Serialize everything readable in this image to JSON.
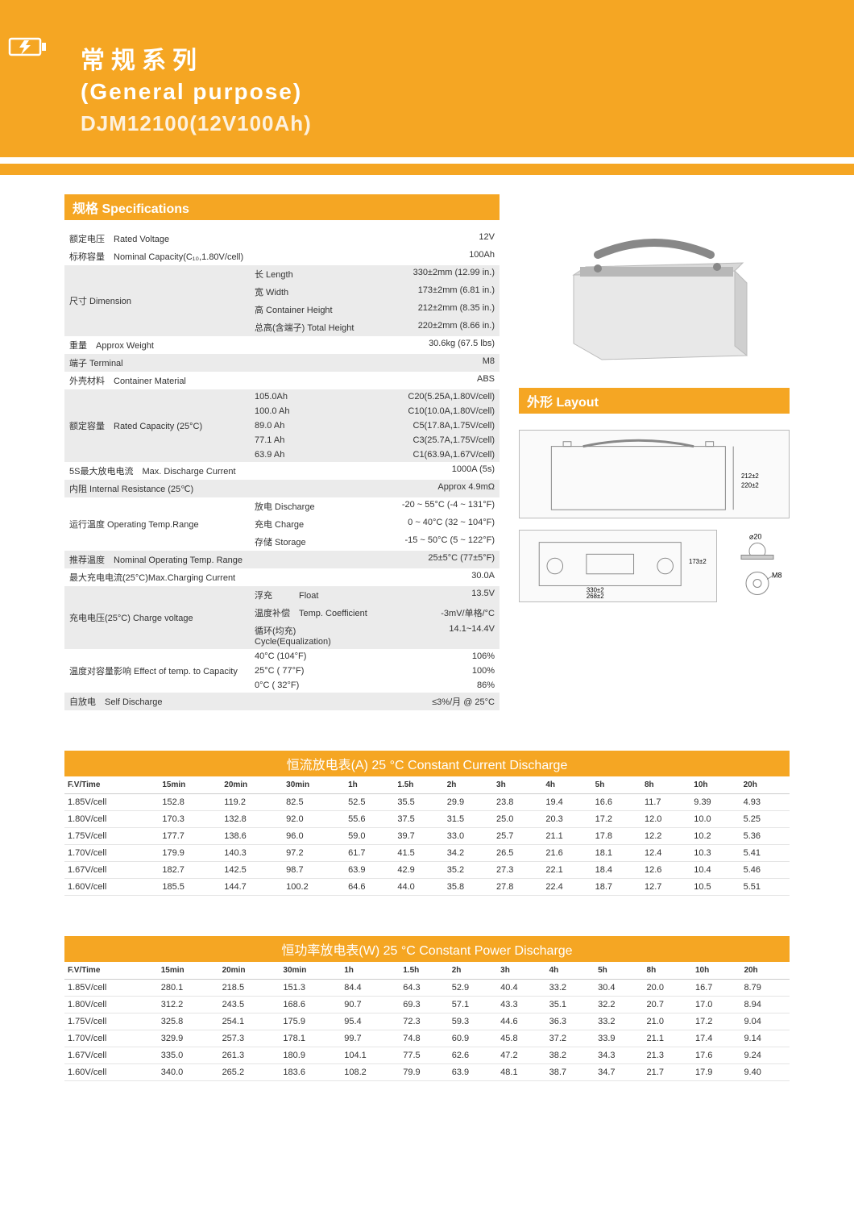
{
  "colors": {
    "accent": "#f5a623",
    "text": "#333333",
    "greyRow": "#ebebeb",
    "white": "#ffffff"
  },
  "header": {
    "titleCn": "常规系列",
    "titleEn": "(General purpose)",
    "model": "DJM12100(12V100Ah)"
  },
  "specHeader": "规格  Specifications",
  "layoutHeader": "外形  Layout",
  "specs": {
    "ratedVoltage": {
      "label": "额定电压　Rated Voltage",
      "value": "12V"
    },
    "nominalCap": {
      "label": "标称容量　Nominal Capacity(C₁₀,1.80V/cell)",
      "value": "100Ah"
    },
    "dimension": {
      "label": "尺寸  Dimension",
      "rows": [
        {
          "mid": "长  Length",
          "val": "330±2mm (12.99 in.)"
        },
        {
          "mid": "宽  Width",
          "val": "173±2mm  (6.81 in.)"
        },
        {
          "mid": "高  Container Height",
          "val": "212±2mm  (8.35 in.)"
        },
        {
          "mid": "总高(含端子)  Total Height",
          "val": "220±2mm  (8.66 in.)"
        }
      ]
    },
    "weight": {
      "label": "重量　Approx Weight",
      "value": "30.6kg (67.5 lbs)"
    },
    "terminal": {
      "label": "端子  Terminal",
      "value": "M8"
    },
    "material": {
      "label": "外壳材料　Container Material",
      "value": "ABS"
    },
    "ratedCap": {
      "label": "额定容量　Rated Capacity (25°C)",
      "rows": [
        {
          "mid": "105.0Ah",
          "val": "C20(5.25A,1.80V/cell)"
        },
        {
          "mid": "100.0 Ah",
          "val": "C10(10.0A,1.80V/cell)"
        },
        {
          "mid": "89.0 Ah",
          "val": "C5(17.8A,1.75V/cell)"
        },
        {
          "mid": "77.1 Ah",
          "val": "C3(25.7A,1.75V/cell)"
        },
        {
          "mid": "63.9 Ah",
          "val": "C1(63.9A,1.67V/cell)"
        }
      ]
    },
    "maxDischarge": {
      "label": "5S最大放电电流　Max. Discharge Current",
      "value": "1000A (5s)"
    },
    "resistance": {
      "label": "内阻  Internal Resistance (25℃)",
      "value": "Approx 4.9mΩ"
    },
    "opTemp": {
      "label": "运行温度  Operating Temp.Range",
      "rows": [
        {
          "mid": "放电 Discharge",
          "val": "-20 ~ 55°C (-4 ~ 131°F)"
        },
        {
          "mid": "充电 Charge",
          "val": "0 ~ 40°C (32 ~ 104°F)"
        },
        {
          "mid": "存储 Storage",
          "val": "-15 ~ 50°C (5 ~ 122°F)"
        }
      ]
    },
    "nomTemp": {
      "label": "推荐温度　Nominal Operating Temp. Range",
      "value": "25±5°C (77±5°F)"
    },
    "maxCharge": {
      "label": "最大充电电流(25°C)Max.Charging Current",
      "value": "30.0A"
    },
    "chargeVolt": {
      "label": "充电电压(25°C) Charge voltage",
      "rows": [
        {
          "mid": "浮充　　　Float",
          "val": "13.5V"
        },
        {
          "mid": "温度补偿　Temp. Coefficient",
          "val": "-3mV/单格/°C"
        },
        {
          "mid": "循环(均充)  Cycle(Equalization)",
          "val": "14.1~14.4V"
        }
      ]
    },
    "tempEffect": {
      "label": "温度对容量影响 Effect of temp. to Capacity",
      "rows": [
        {
          "mid": "40°C  (104°F)",
          "val": "106%"
        },
        {
          "mid": "25°C ( 77°F)",
          "val": "100%"
        },
        {
          "mid": "0°C  ( 32°F)",
          "val": "86%"
        }
      ]
    },
    "selfDischarge": {
      "label": "自放电　Self Discharge",
      "value": "≤3%/月 @ 25°C"
    }
  },
  "layoutDims": {
    "height1": "212±2",
    "height2": "220±2",
    "width": "268±2",
    "length": "330±2",
    "widthShort": "173±2",
    "terminal": "M8",
    "bolt": "⌀20"
  },
  "currentTable": {
    "header": "恒流放电表(A) 25 °C  Constant Current Discharge",
    "columns": [
      "F.V/Time",
      "15min",
      "20min",
      "30min",
      "1h",
      "1.5h",
      "2h",
      "3h",
      "4h",
      "5h",
      "8h",
      "10h",
      "20h"
    ],
    "rows": [
      [
        "1.85V/cell",
        "152.8",
        "119.2",
        "82.5",
        "52.5",
        "35.5",
        "29.9",
        "23.8",
        "19.4",
        "16.6",
        "11.7",
        "9.39",
        "4.93"
      ],
      [
        "1.80V/cell",
        "170.3",
        "132.8",
        "92.0",
        "55.6",
        "37.5",
        "31.5",
        "25.0",
        "20.3",
        "17.2",
        "12.0",
        "10.0",
        "5.25"
      ],
      [
        "1.75V/cell",
        "177.7",
        "138.6",
        "96.0",
        "59.0",
        "39.7",
        "33.0",
        "25.7",
        "21.1",
        "17.8",
        "12.2",
        "10.2",
        "5.36"
      ],
      [
        "1.70V/cell",
        "179.9",
        "140.3",
        "97.2",
        "61.7",
        "41.5",
        "34.2",
        "26.5",
        "21.6",
        "18.1",
        "12.4",
        "10.3",
        "5.41"
      ],
      [
        "1.67V/cell",
        "182.7",
        "142.5",
        "98.7",
        "63.9",
        "42.9",
        "35.2",
        "27.3",
        "22.1",
        "18.4",
        "12.6",
        "10.4",
        "5.46"
      ],
      [
        "1.60V/cell",
        "185.5",
        "144.7",
        "100.2",
        "64.6",
        "44.0",
        "35.8",
        "27.8",
        "22.4",
        "18.7",
        "12.7",
        "10.5",
        "5.51"
      ]
    ]
  },
  "powerTable": {
    "header": "恒功率放电表(W) 25 °C  Constant Power Discharge",
    "columns": [
      "F.V/Time",
      "15min",
      "20min",
      "30min",
      "1h",
      "1.5h",
      "2h",
      "3h",
      "4h",
      "5h",
      "8h",
      "10h",
      "20h"
    ],
    "rows": [
      [
        "1.85V/cell",
        "280.1",
        "218.5",
        "151.3",
        "84.4",
        "64.3",
        "52.9",
        "40.4",
        "33.2",
        "30.4",
        "20.0",
        "16.7",
        "8.79"
      ],
      [
        "1.80V/cell",
        "312.2",
        "243.5",
        "168.6",
        "90.7",
        "69.3",
        "57.1",
        "43.3",
        "35.1",
        "32.2",
        "20.7",
        "17.0",
        "8.94"
      ],
      [
        "1.75V/cell",
        "325.8",
        "254.1",
        "175.9",
        "95.4",
        "72.3",
        "59.3",
        "44.6",
        "36.3",
        "33.2",
        "21.0",
        "17.2",
        "9.04"
      ],
      [
        "1.70V/cell",
        "329.9",
        "257.3",
        "178.1",
        "99.7",
        "74.8",
        "60.9",
        "45.8",
        "37.2",
        "33.9",
        "21.1",
        "17.4",
        "9.14"
      ],
      [
        "1.67V/cell",
        "335.0",
        "261.3",
        "180.9",
        "104.1",
        "77.5",
        "62.6",
        "47.2",
        "38.2",
        "34.3",
        "21.3",
        "17.6",
        "9.24"
      ],
      [
        "1.60V/cell",
        "340.0",
        "265.2",
        "183.6",
        "108.2",
        "79.9",
        "63.9",
        "48.1",
        "38.7",
        "34.7",
        "21.7",
        "17.9",
        "9.40"
      ]
    ]
  }
}
